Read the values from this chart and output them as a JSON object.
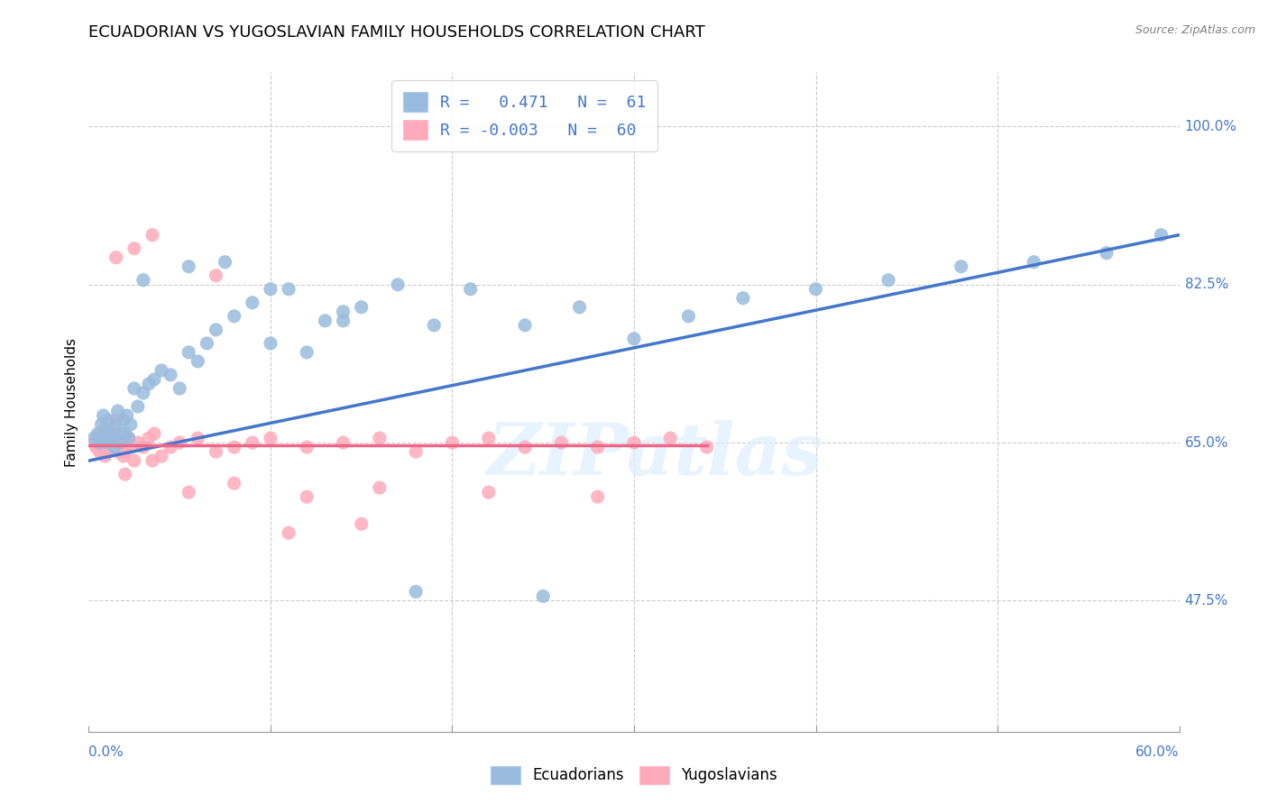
{
  "title": "ECUADORIAN VS YUGOSLAVIAN FAMILY HOUSEHOLDS CORRELATION CHART",
  "source": "Source: ZipAtlas.com",
  "ylabel": "Family Households",
  "yticks": [
    47.5,
    65.0,
    82.5,
    100.0
  ],
  "ytick_labels": [
    "47.5%",
    "65.0%",
    "82.5%",
    "100.0%"
  ],
  "xlim": [
    0.0,
    60.0
  ],
  "ylim": [
    33.0,
    106.0
  ],
  "legend_label1": "Ecuadorians",
  "legend_label2": "Yugoslavians",
  "color_blue": "#99BBDD",
  "color_pink": "#FFAABB",
  "color_blue_dark": "#4477CC",
  "color_pink_dark": "#EE6688",
  "watermark": "ZIPatlas",
  "blue_scatter_x": [
    0.3,
    0.5,
    0.6,
    0.7,
    0.8,
    0.9,
    1.0,
    1.1,
    1.2,
    1.3,
    1.4,
    1.5,
    1.6,
    1.7,
    1.8,
    1.9,
    2.0,
    2.1,
    2.2,
    2.3,
    2.5,
    2.7,
    3.0,
    3.3,
    3.6,
    4.0,
    4.5,
    5.0,
    5.5,
    6.0,
    6.5,
    7.0,
    8.0,
    9.0,
    10.0,
    11.0,
    12.0,
    13.0,
    14.0,
    15.0,
    17.0,
    19.0,
    21.0,
    24.0,
    27.0,
    30.0,
    33.0,
    36.0,
    40.0,
    44.0,
    48.0,
    52.0,
    56.0,
    59.0,
    3.0,
    5.5,
    7.5,
    10.0,
    14.0,
    18.0,
    25.0
  ],
  "blue_scatter_y": [
    65.5,
    66.0,
    65.0,
    67.0,
    68.0,
    66.5,
    65.0,
    67.5,
    66.0,
    65.5,
    64.5,
    67.0,
    68.5,
    65.0,
    66.0,
    67.5,
    66.0,
    68.0,
    65.5,
    67.0,
    71.0,
    69.0,
    70.5,
    71.5,
    72.0,
    73.0,
    72.5,
    71.0,
    75.0,
    74.0,
    76.0,
    77.5,
    79.0,
    80.5,
    76.0,
    82.0,
    75.0,
    78.5,
    79.5,
    80.0,
    82.5,
    78.0,
    82.0,
    78.0,
    80.0,
    76.5,
    79.0,
    81.0,
    82.0,
    83.0,
    84.5,
    85.0,
    86.0,
    88.0,
    83.0,
    84.5,
    85.0,
    82.0,
    78.5,
    48.5,
    48.0
  ],
  "pink_scatter_x": [
    0.3,
    0.4,
    0.5,
    0.6,
    0.7,
    0.8,
    0.9,
    1.0,
    1.1,
    1.2,
    1.3,
    1.4,
    1.5,
    1.6,
    1.7,
    1.8,
    1.9,
    2.0,
    2.1,
    2.2,
    2.3,
    2.5,
    2.7,
    3.0,
    3.3,
    3.6,
    4.0,
    4.5,
    5.0,
    6.0,
    7.0,
    8.0,
    9.0,
    10.0,
    12.0,
    14.0,
    16.0,
    18.0,
    20.0,
    22.0,
    24.0,
    26.0,
    28.0,
    30.0,
    32.0,
    34.0,
    2.0,
    3.5,
    5.5,
    8.0,
    12.0,
    16.0,
    22.0,
    28.0,
    1.5,
    2.5,
    3.5,
    7.0,
    11.0,
    15.0
  ],
  "pink_scatter_y": [
    65.0,
    64.5,
    65.5,
    64.0,
    66.0,
    65.0,
    63.5,
    64.0,
    65.5,
    66.0,
    65.5,
    66.5,
    67.5,
    64.0,
    65.0,
    64.5,
    63.5,
    64.0,
    65.0,
    65.5,
    64.5,
    63.0,
    65.0,
    64.5,
    65.5,
    66.0,
    63.5,
    64.5,
    65.0,
    65.5,
    64.0,
    64.5,
    65.0,
    65.5,
    64.5,
    65.0,
    65.5,
    64.0,
    65.0,
    65.5,
    64.5,
    65.0,
    64.5,
    65.0,
    65.5,
    64.5,
    61.5,
    63.0,
    59.5,
    60.5,
    59.0,
    60.0,
    59.5,
    59.0,
    85.5,
    86.5,
    88.0,
    83.5,
    55.0,
    56.0
  ],
  "blue_line_x": [
    0.0,
    60.0
  ],
  "blue_line_y": [
    63.0,
    88.0
  ],
  "pink_line_x": [
    0.0,
    34.0
  ],
  "pink_line_y": [
    64.7,
    64.7
  ],
  "grid_color": "#CCCCCC",
  "title_fontsize": 13,
  "axis_label_fontsize": 11,
  "tick_fontsize": 11,
  "legend_fontsize": 13,
  "scatter_size": 120
}
